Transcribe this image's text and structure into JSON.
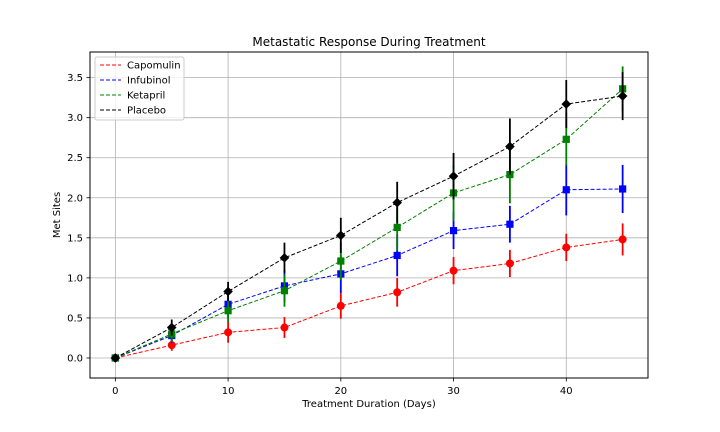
{
  "chart_data": {
    "type": "line",
    "title": "Metastatic Response During Treatment",
    "xlabel": "Treatment Duration (Days)",
    "ylabel": "Met Sites",
    "xlim": [
      -2.25,
      47.25
    ],
    "ylim": [
      -0.25,
      3.82
    ],
    "x_ticks": [
      0,
      10,
      20,
      30,
      40
    ],
    "y_ticks": [
      0.0,
      0.5,
      1.0,
      1.5,
      2.0,
      2.5,
      3.0,
      3.5
    ],
    "x_tick_labels": [
      "0",
      "10",
      "20",
      "30",
      "40"
    ],
    "y_tick_labels": [
      "0.0",
      "0.5",
      "1.0",
      "1.5",
      "2.0",
      "2.5",
      "3.0",
      "3.5"
    ],
    "grid": true,
    "legend_position": "top-left",
    "x": [
      0,
      5,
      10,
      15,
      20,
      25,
      30,
      35,
      40,
      45
    ],
    "series": [
      {
        "name": "Capomulin",
        "color": "#ff0000",
        "marker": "circle",
        "values": [
          0.0,
          0.16,
          0.32,
          0.38,
          0.65,
          0.82,
          1.09,
          1.18,
          1.38,
          1.48
        ],
        "errors": [
          0.0,
          0.07,
          0.13,
          0.13,
          0.16,
          0.18,
          0.17,
          0.17,
          0.17,
          0.2
        ]
      },
      {
        "name": "Infubinol",
        "color": "#0000ff",
        "marker": "square",
        "values": [
          0.0,
          0.28,
          0.67,
          0.9,
          1.05,
          1.28,
          1.59,
          1.67,
          2.1,
          2.11
        ],
        "errors": [
          0.0,
          0.09,
          0.17,
          0.2,
          0.24,
          0.26,
          0.23,
          0.23,
          0.32,
          0.3
        ]
      },
      {
        "name": "Ketapril",
        "color": "#008000",
        "marker": "square",
        "values": [
          0.0,
          0.3,
          0.59,
          0.84,
          1.21,
          1.63,
          2.06,
          2.29,
          2.73,
          3.36
        ],
        "errors": [
          0.0,
          0.1,
          0.14,
          0.2,
          0.24,
          0.29,
          0.35,
          0.36,
          0.33,
          0.28
        ]
      },
      {
        "name": "Placebo",
        "color": "#000000",
        "marker": "diamond",
        "values": [
          0.0,
          0.38,
          0.83,
          1.25,
          1.53,
          1.94,
          2.27,
          2.64,
          3.17,
          3.27
        ],
        "errors": [
          0.0,
          0.1,
          0.12,
          0.19,
          0.22,
          0.26,
          0.29,
          0.35,
          0.3,
          0.3
        ]
      }
    ]
  }
}
